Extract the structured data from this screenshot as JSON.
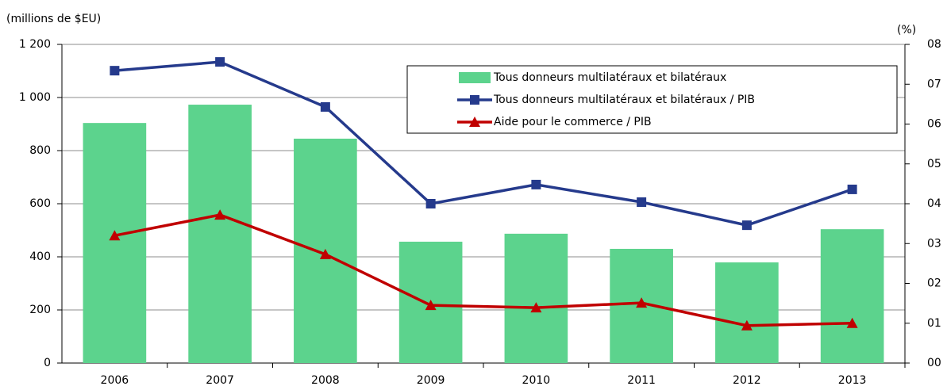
{
  "chart_data": {
    "type": "bar_line",
    "ylabel": "(millions de $EU)",
    "y2label": "(%)",
    "categories": [
      "2006",
      "2007",
      "2008",
      "2009",
      "2010",
      "2011",
      "2012",
      "2013"
    ],
    "series": [
      {
        "name": "Tous donneurs multilatéraux et bilatéraux",
        "type": "bar",
        "color": "#5cd38d",
        "values": [
          904,
          973,
          845,
          457,
          487,
          430,
          379,
          504
        ]
      },
      {
        "name": "Tous donneurs multilatéraux et bilatéraux / PIB",
        "type": "line",
        "axis": "y2",
        "marker": "square",
        "color": "#253a8c",
        "values": [
          7.34,
          7.56,
          6.43,
          4.0,
          4.48,
          4.04,
          3.46,
          4.36
        ]
      },
      {
        "name": "Aide pour le commerce / PIB",
        "type": "line",
        "axis": "y2",
        "marker": "triangle",
        "color": "#c00000",
        "values": [
          3.2,
          3.72,
          2.73,
          1.45,
          1.39,
          1.51,
          0.94,
          1.0
        ]
      }
    ],
    "ylim": [
      0,
      1200
    ],
    "yticks": [
      0,
      200,
      400,
      600,
      800,
      {
        "value": 1000,
        "label": "1 000"
      },
      {
        "value": 1200,
        "label": "1 200"
      }
    ],
    "y2lim": [
      0,
      8
    ],
    "y2ticks": [
      {
        "value": 0,
        "label": "00"
      },
      {
        "value": 1,
        "label": "01"
      },
      {
        "value": 2,
        "label": "02"
      },
      {
        "value": 3,
        "label": "03"
      },
      {
        "value": 4,
        "label": "04"
      },
      {
        "value": 5,
        "label": "05"
      },
      {
        "value": 6,
        "label": "06"
      },
      {
        "value": 7,
        "label": "07"
      },
      {
        "value": 8,
        "label": "08"
      }
    ],
    "grid": true
  }
}
